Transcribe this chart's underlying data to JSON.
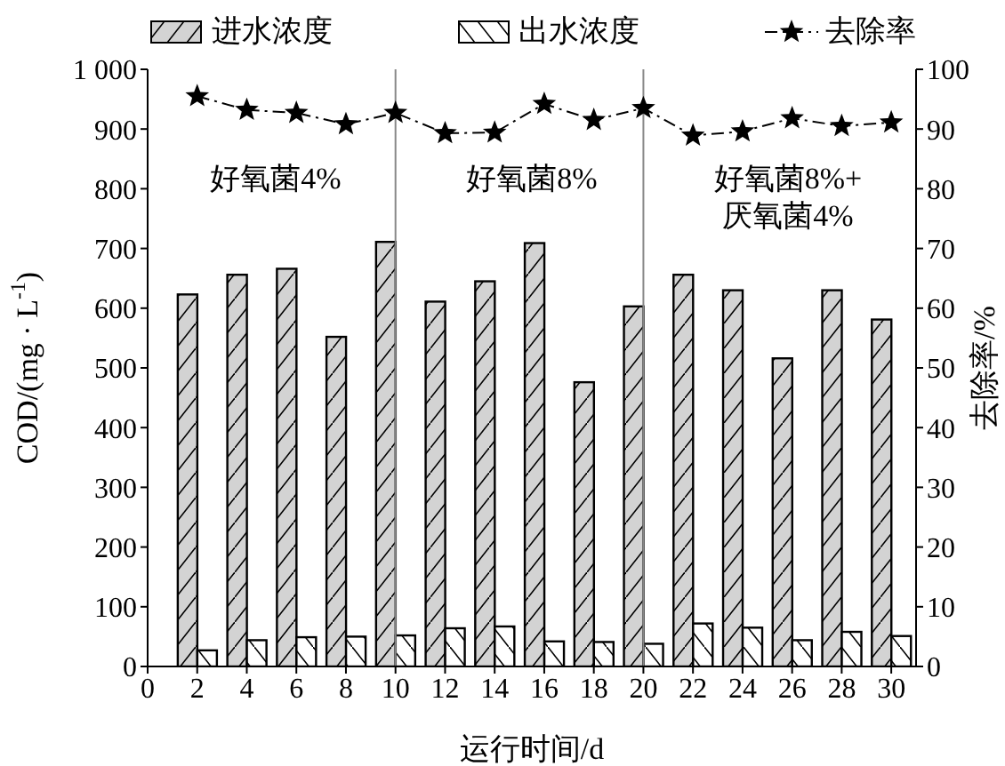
{
  "chart_data": {
    "type": "bar",
    "xlabel": "运行时间/d",
    "ylabel": "COD/(mg · L$^{-1}$)",
    "y2label": "去除率/%",
    "x": [
      2,
      4,
      6,
      8,
      10,
      12,
      14,
      16,
      18,
      20,
      22,
      24,
      26,
      28,
      30
    ],
    "xlim": [
      0,
      31
    ],
    "xticks": [
      0,
      2,
      4,
      6,
      8,
      10,
      12,
      14,
      16,
      18,
      20,
      22,
      24,
      26,
      28,
      30
    ],
    "ylim": [
      0,
      1000
    ],
    "yticks": [
      0,
      100,
      200,
      300,
      400,
      500,
      600,
      700,
      800,
      {
        "value": 900,
        "label": "900"
      },
      {
        "value": 1000,
        "label": "1 000"
      }
    ],
    "y2lim": [
      0,
      100
    ],
    "y2ticks": [
      0,
      10,
      20,
      30,
      40,
      50,
      60,
      70,
      80,
      90,
      100
    ],
    "series": [
      {
        "name": "进水浓度",
        "color": "#d3d3d3",
        "values": [
          623,
          656,
          666,
          552,
          711,
          611,
          645,
          709,
          476,
          603,
          656,
          630,
          516,
          630,
          581
        ]
      },
      {
        "name": "出水浓度",
        "color": "#ffffff",
        "values": [
          27,
          44,
          49,
          50,
          52,
          64,
          67,
          42,
          41,
          38,
          72,
          65,
          44,
          58,
          51
        ]
      },
      {
        "name": "去除率",
        "type": "line",
        "axis": "y2",
        "color": "#000000",
        "marker": "star",
        "line_style": "dashed",
        "values": [
          95.5,
          93.2,
          92.7,
          90.8,
          92.7,
          89.3,
          89.4,
          94.2,
          91.5,
          93.5,
          88.9,
          89.6,
          91.8,
          90.5,
          91.1
        ]
      }
    ],
    "ref_lines": [
      {
        "axis": "x",
        "value": 10,
        "color": "#888888"
      },
      {
        "axis": "x",
        "value": 20,
        "color": "#888888"
      }
    ],
    "annotations": [
      "好氧菌4%",
      "好氧菌8%",
      "好氧菌8%+\n厌氧菌4%"
    ],
    "legend": "top"
  }
}
